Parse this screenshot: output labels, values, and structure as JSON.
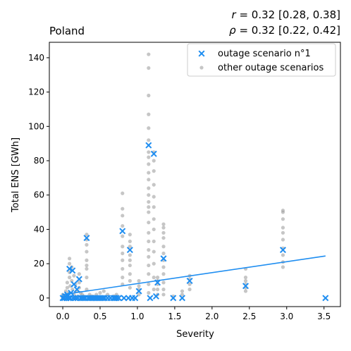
{
  "chart_data": {
    "type": "scatter",
    "title": "Poland",
    "stats": {
      "pearson": "$r = 0.32$ [0.28, 0.38]",
      "spearman": "$\\rho = 0.32$ [0.22, 0.42]",
      "pearson_symbol": "r",
      "pearson_value": " = 0.32 [0.28, 0.38]",
      "spearman_symbol": "ρ",
      "spearman_value": " = 0.32 [0.22, 0.42]"
    },
    "xlabel": "Severity",
    "ylabel": "Total ENS [GWh]",
    "xlim": [
      -0.18,
      3.72
    ],
    "ylim": [
      -5,
      149
    ],
    "xticks": [
      0.0,
      0.5,
      1.0,
      1.5,
      2.0,
      2.5,
      3.0,
      3.5
    ],
    "xtick_labels": [
      "0.0",
      "0.5",
      "1.0",
      "1.5",
      "2.0",
      "2.5",
      "3.0",
      "3.5"
    ],
    "yticks": [
      0,
      20,
      40,
      60,
      80,
      100,
      120,
      140
    ],
    "ytick_labels": [
      "0",
      "20",
      "40",
      "60",
      "80",
      "100",
      "120",
      "140"
    ],
    "grid": false,
    "legend_position": "top-right",
    "legend": [
      {
        "label": "outage scenario n°1",
        "marker": "x",
        "color": "#1f8ef1"
      },
      {
        "label": "other outage scenarios",
        "marker": "circle",
        "color": "#a0a0a0"
      }
    ],
    "series": [
      {
        "name": "outage scenario n°1",
        "marker": "x",
        "color": "#1f8ef1",
        "points": [
          [
            0.0,
            0
          ],
          [
            0.02,
            0
          ],
          [
            0.03,
            1
          ],
          [
            0.05,
            0
          ],
          [
            0.06,
            2
          ],
          [
            0.08,
            0
          ],
          [
            0.09,
            17
          ],
          [
            0.1,
            0
          ],
          [
            0.11,
            3
          ],
          [
            0.13,
            16
          ],
          [
            0.14,
            0
          ],
          [
            0.15,
            8
          ],
          [
            0.17,
            0
          ],
          [
            0.19,
            5
          ],
          [
            0.2,
            0
          ],
          [
            0.22,
            11
          ],
          [
            0.24,
            0
          ],
          [
            0.26,
            0
          ],
          [
            0.28,
            0
          ],
          [
            0.3,
            0
          ],
          [
            0.32,
            35
          ],
          [
            0.34,
            0
          ],
          [
            0.36,
            0
          ],
          [
            0.38,
            0
          ],
          [
            0.4,
            0
          ],
          [
            0.42,
            0
          ],
          [
            0.44,
            0
          ],
          [
            0.46,
            0
          ],
          [
            0.48,
            0
          ],
          [
            0.5,
            0
          ],
          [
            0.52,
            0
          ],
          [
            0.54,
            0
          ],
          [
            0.56,
            0
          ],
          [
            0.6,
            0
          ],
          [
            0.64,
            0
          ],
          [
            0.68,
            0
          ],
          [
            0.7,
            0
          ],
          [
            0.72,
            0
          ],
          [
            0.75,
            0
          ],
          [
            0.8,
            39
          ],
          [
            0.82,
            0
          ],
          [
            0.88,
            0
          ],
          [
            0.9,
            28
          ],
          [
            0.93,
            0
          ],
          [
            0.97,
            0
          ],
          [
            1.02,
            4
          ],
          [
            1.15,
            89
          ],
          [
            1.17,
            0
          ],
          [
            1.22,
            84
          ],
          [
            1.25,
            1
          ],
          [
            1.27,
            9
          ],
          [
            1.35,
            23
          ],
          [
            1.48,
            0
          ],
          [
            1.6,
            0
          ],
          [
            1.7,
            10
          ],
          [
            2.45,
            7
          ],
          [
            2.95,
            28
          ],
          [
            3.52,
            0
          ]
        ]
      },
      {
        "name": "other outage scenarios",
        "marker": "circle",
        "color": "#a0a0a0",
        "points": [
          [
            0.0,
            0
          ],
          [
            0.0,
            2
          ],
          [
            0.02,
            1
          ],
          [
            0.04,
            4
          ],
          [
            0.06,
            6
          ],
          [
            0.06,
            9
          ],
          [
            0.08,
            3
          ],
          [
            0.09,
            12
          ],
          [
            0.09,
            15
          ],
          [
            0.09,
            20
          ],
          [
            0.09,
            23
          ],
          [
            0.1,
            7
          ],
          [
            0.12,
            10
          ],
          [
            0.12,
            18
          ],
          [
            0.13,
            5
          ],
          [
            0.15,
            13
          ],
          [
            0.15,
            2
          ],
          [
            0.17,
            8
          ],
          [
            0.19,
            4
          ],
          [
            0.2,
            1
          ],
          [
            0.22,
            6
          ],
          [
            0.22,
            9
          ],
          [
            0.22,
            14
          ],
          [
            0.24,
            3
          ],
          [
            0.26,
            2
          ],
          [
            0.28,
            1
          ],
          [
            0.32,
            5
          ],
          [
            0.32,
            12
          ],
          [
            0.32,
            17
          ],
          [
            0.32,
            19
          ],
          [
            0.32,
            22
          ],
          [
            0.32,
            27
          ],
          [
            0.32,
            31
          ],
          [
            0.32,
            34
          ],
          [
            0.32,
            37
          ],
          [
            0.36,
            2
          ],
          [
            0.4,
            1
          ],
          [
            0.45,
            2
          ],
          [
            0.5,
            3
          ],
          [
            0.55,
            4
          ],
          [
            0.6,
            2
          ],
          [
            0.68,
            1
          ],
          [
            0.72,
            2
          ],
          [
            0.8,
            8
          ],
          [
            0.8,
            12
          ],
          [
            0.8,
            17
          ],
          [
            0.8,
            22
          ],
          [
            0.8,
            26
          ],
          [
            0.8,
            30
          ],
          [
            0.8,
            36
          ],
          [
            0.8,
            42
          ],
          [
            0.8,
            48
          ],
          [
            0.8,
            52
          ],
          [
            0.8,
            61
          ],
          [
            0.9,
            6
          ],
          [
            0.9,
            10
          ],
          [
            0.9,
            14
          ],
          [
            0.9,
            19
          ],
          [
            0.9,
            22
          ],
          [
            0.9,
            25
          ],
          [
            0.9,
            30
          ],
          [
            0.9,
            33
          ],
          [
            0.9,
            37
          ],
          [
            1.02,
            2
          ],
          [
            1.02,
            5
          ],
          [
            1.02,
            7
          ],
          [
            1.02,
            10
          ],
          [
            1.15,
            3
          ],
          [
            1.15,
            8
          ],
          [
            1.15,
            14
          ],
          [
            1.15,
            19
          ],
          [
            1.15,
            24
          ],
          [
            1.15,
            28
          ],
          [
            1.15,
            33
          ],
          [
            1.15,
            38
          ],
          [
            1.15,
            44
          ],
          [
            1.15,
            50
          ],
          [
            1.15,
            53
          ],
          [
            1.15,
            56
          ],
          [
            1.15,
            60
          ],
          [
            1.15,
            64
          ],
          [
            1.15,
            69
          ],
          [
            1.15,
            73
          ],
          [
            1.15,
            78
          ],
          [
            1.15,
            82
          ],
          [
            1.15,
            85
          ],
          [
            1.15,
            92
          ],
          [
            1.15,
            99
          ],
          [
            1.15,
            107
          ],
          [
            1.15,
            118
          ],
          [
            1.15,
            134
          ],
          [
            1.15,
            142
          ],
          [
            1.22,
            5
          ],
          [
            1.22,
            12
          ],
          [
            1.22,
            20
          ],
          [
            1.22,
            27
          ],
          [
            1.22,
            33
          ],
          [
            1.22,
            40
          ],
          [
            1.22,
            46
          ],
          [
            1.22,
            53
          ],
          [
            1.22,
            59
          ],
          [
            1.22,
            66
          ],
          [
            1.22,
            74
          ],
          [
            1.22,
            80
          ],
          [
            1.22,
            85
          ],
          [
            1.27,
            2
          ],
          [
            1.27,
            5
          ],
          [
            1.27,
            8
          ],
          [
            1.27,
            10
          ],
          [
            1.27,
            12
          ],
          [
            1.35,
            2
          ],
          [
            1.35,
            5
          ],
          [
            1.35,
            9
          ],
          [
            1.35,
            14
          ],
          [
            1.35,
            18
          ],
          [
            1.35,
            22
          ],
          [
            1.35,
            26
          ],
          [
            1.35,
            30
          ],
          [
            1.35,
            35
          ],
          [
            1.35,
            38
          ],
          [
            1.35,
            41
          ],
          [
            1.35,
            43
          ],
          [
            1.48,
            1
          ],
          [
            1.6,
            2
          ],
          [
            1.6,
            4
          ],
          [
            1.7,
            5
          ],
          [
            1.7,
            8
          ],
          [
            1.7,
            11
          ],
          [
            1.7,
            13
          ],
          [
            2.45,
            4
          ],
          [
            2.45,
            6
          ],
          [
            2.45,
            8
          ],
          [
            2.45,
            10
          ],
          [
            2.45,
            12
          ],
          [
            2.45,
            17
          ],
          [
            2.95,
            18
          ],
          [
            2.95,
            21
          ],
          [
            2.95,
            25
          ],
          [
            2.95,
            29
          ],
          [
            2.95,
            34
          ],
          [
            2.95,
            38
          ],
          [
            2.95,
            41
          ],
          [
            2.95,
            46
          ],
          [
            2.95,
            50
          ],
          [
            2.95,
            51
          ]
        ]
      }
    ],
    "fit_line": {
      "color": "#1f8ef1",
      "x": [
        0.0,
        3.52
      ],
      "y": [
        2.0,
        24.5
      ]
    }
  }
}
